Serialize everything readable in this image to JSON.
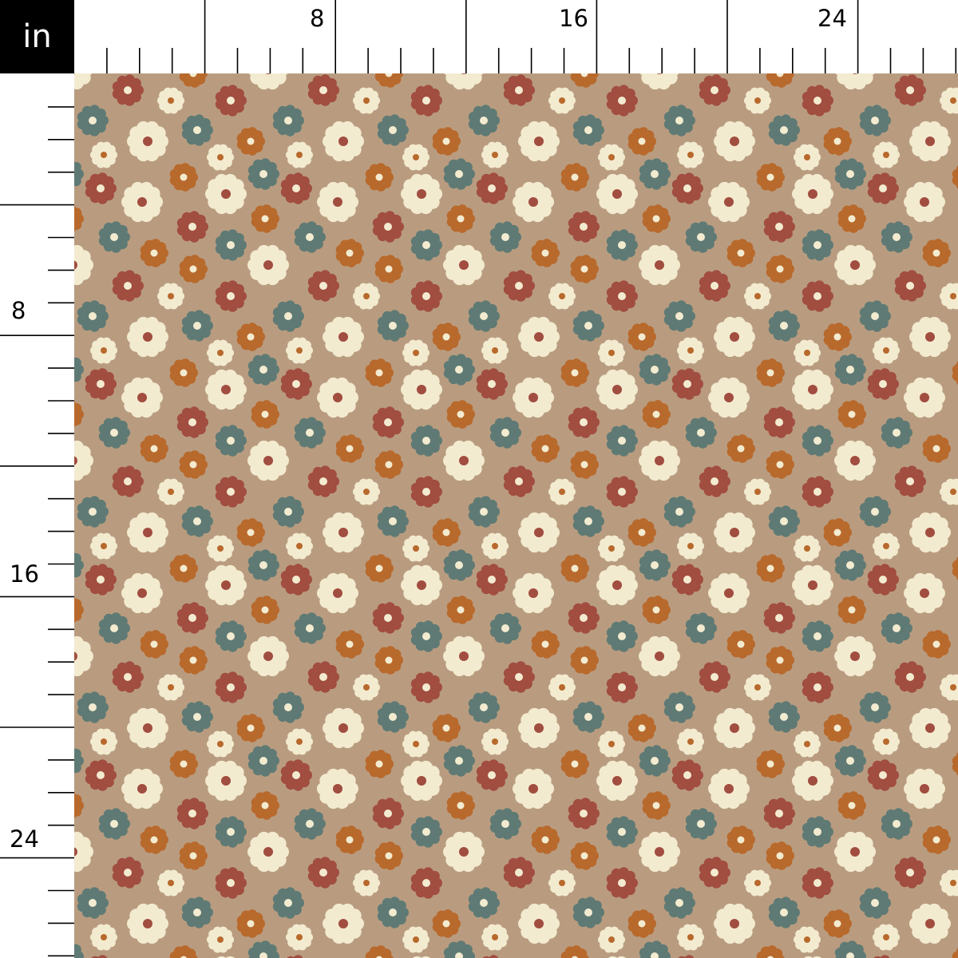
{
  "ruler": {
    "unit_label": "in",
    "top_labels": [
      "8",
      "16",
      "24"
    ],
    "left_labels": [
      "8",
      "16",
      "24"
    ],
    "ticks_every_inch": true,
    "major_tick_every": 4
  },
  "fabric": {
    "pattern": "daisy-floral",
    "repeat_inches": 6,
    "colors": {
      "background": "#b99c80",
      "red": "#a14d40",
      "teal": "#5f7a74",
      "orange": "#b8692c",
      "cream": "#f3ebd0"
    }
  }
}
